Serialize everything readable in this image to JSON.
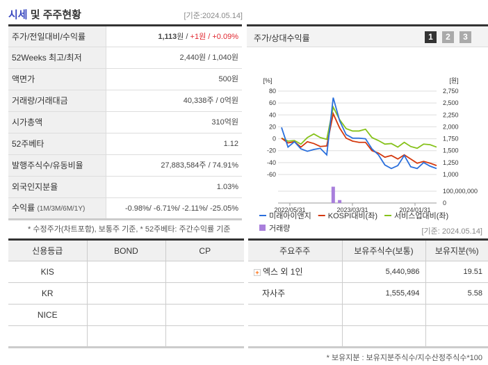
{
  "header": {
    "title_hl": "시세",
    "title_rest": " 및 주주현황",
    "basis": "[기준:2024.05.14]"
  },
  "summary": [
    {
      "label": "주가/전일대비/수익률",
      "price": "1,113",
      "unit": "원 / ",
      "change": "+1원 / +0.09%"
    },
    {
      "label": "52Weeks 최고/최저",
      "value": "2,440원 / 1,040원"
    },
    {
      "label": "액면가",
      "value": "500원"
    },
    {
      "label": "거래량/거래대금",
      "value": "40,338주 / 0억원"
    },
    {
      "label": "시가총액",
      "value": "310억원"
    },
    {
      "label": "52주베타",
      "value": "1.12"
    },
    {
      "label": "발행주식수/유동비율",
      "value": "27,883,584주 / 74.91%"
    },
    {
      "label": "외국인지분율",
      "value": "1.03%"
    },
    {
      "label": "수익률",
      "label_sub": "(1M/3M/6M/1Y)",
      "value": "-0.98%/ -6.71%/ -2.11%/ -25.05%"
    }
  ],
  "summary_note": "* 수정주가(차트포함), 보통주 기준, * 52주베타: 주간수익률 기준",
  "chart_panel": {
    "title": "주가/상대수익률",
    "buttons": [
      "1",
      "2",
      "3"
    ],
    "active": 0
  },
  "chart_data": {
    "type": "line",
    "left_axis_label": "[%]",
    "right_axis_label": "[원]",
    "left_ticks": [
      "80",
      "60",
      "40",
      "20",
      "0",
      "-20",
      "-40",
      "-60"
    ],
    "right_ticks": [
      "2,750",
      "2,500",
      "2,250",
      "2,000",
      "1,750",
      "1,500",
      "1,250",
      "1,000"
    ],
    "volume_ticks": [
      "100,000,000",
      "0"
    ],
    "x_ticks": [
      "2022/05/31",
      "2023/03/31",
      "2024/01/31"
    ],
    "ylim": [
      -60,
      80
    ],
    "series": [
      {
        "name": "미래아이앤지",
        "color": "#2a6fdc",
        "values": [
          19,
          -14,
          -5,
          -17,
          -21,
          -18,
          -16,
          -27,
          69,
          30,
          7,
          1,
          1,
          0,
          -17,
          -27,
          -44,
          -50,
          -45,
          -28,
          -47,
          -50,
          -40,
          -46,
          -50
        ]
      },
      {
        "name": "KOSPI대비(좌)",
        "color": "#d4380d",
        "values": [
          1,
          -7,
          -5,
          -14,
          -5,
          -8,
          -13,
          -12,
          42,
          18,
          1,
          -4,
          -6,
          -6,
          -20,
          -24,
          -31,
          -28,
          -34,
          -27,
          -34,
          -41,
          -38,
          -41,
          -45
        ]
      },
      {
        "name": "서비스업대비(좌)",
        "color": "#86c21a",
        "values": [
          1,
          -4,
          -3,
          -9,
          2,
          8,
          2,
          -1,
          53,
          32,
          17,
          13,
          13,
          16,
          2,
          -3,
          -9,
          -8,
          -14,
          -6,
          -13,
          -16,
          -9,
          -10,
          -14
        ]
      }
    ],
    "volume": {
      "name": "거래량",
      "color": "#a97fdc",
      "values": [
        0,
        0,
        0,
        0,
        0,
        0,
        0,
        0,
        138000000,
        25000000,
        0,
        0,
        0,
        0,
        0,
        0,
        0,
        0,
        0,
        0,
        0,
        0,
        0,
        0,
        0
      ]
    }
  },
  "basis2": "[기준: 2024.05.14]",
  "credit": {
    "headers": [
      "신용등급",
      "BOND",
      "CP"
    ],
    "rows": [
      [
        "KIS",
        "",
        ""
      ],
      [
        "KR",
        "",
        ""
      ],
      [
        "NICE",
        "",
        ""
      ],
      [
        "",
        "",
        ""
      ]
    ]
  },
  "holders": {
    "headers": [
      "주요주주",
      "보유주식수(보통)",
      "보유지분(%)"
    ],
    "rows": [
      [
        "엑스 외 1인",
        "5,440,986",
        "19.51"
      ],
      [
        "자사주",
        "1,555,494",
        "5.58"
      ],
      [
        "",
        "",
        ""
      ],
      [
        "",
        "",
        ""
      ]
    ]
  },
  "holders_note": "* 보유지분 : 보유지분주식수/지수산정주식수*100"
}
